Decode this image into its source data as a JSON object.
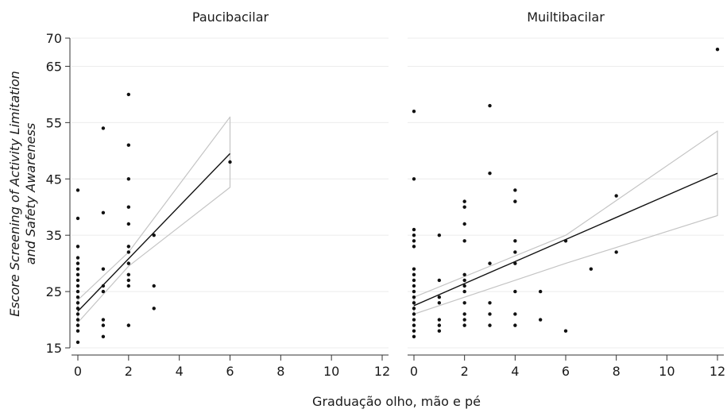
{
  "ylabel_lines": [
    "Escore Screening of Activity Limitation",
    "and Safety Awareness"
  ],
  "xlabel": "Graduação olho, mão e pé",
  "chart_data": [
    {
      "type": "scatter",
      "title": "Paucibacilar",
      "xlim": [
        0,
        12
      ],
      "ylim": [
        15,
        70
      ],
      "xticks": [
        0,
        2,
        4,
        6,
        8,
        10,
        12
      ],
      "yticks": [
        15,
        25,
        35,
        45,
        55,
        65,
        70
      ],
      "grid": true,
      "points": [
        [
          0,
          16
        ],
        [
          0,
          18
        ],
        [
          0,
          19
        ],
        [
          0,
          20
        ],
        [
          0,
          21
        ],
        [
          0,
          22
        ],
        [
          0,
          23
        ],
        [
          0,
          24
        ],
        [
          0,
          25
        ],
        [
          0,
          26
        ],
        [
          0,
          27
        ],
        [
          0,
          28
        ],
        [
          0,
          29
        ],
        [
          0,
          30
        ],
        [
          0,
          31
        ],
        [
          0,
          33
        ],
        [
          0,
          38
        ],
        [
          0,
          43
        ],
        [
          1,
          17
        ],
        [
          1,
          19
        ],
        [
          1,
          20
        ],
        [
          1,
          25
        ],
        [
          1,
          26
        ],
        [
          1,
          29
        ],
        [
          1,
          39
        ],
        [
          1,
          54
        ],
        [
          2,
          19
        ],
        [
          2,
          26
        ],
        [
          2,
          27
        ],
        [
          2,
          28
        ],
        [
          2,
          30
        ],
        [
          2,
          32
        ],
        [
          2,
          33
        ],
        [
          2,
          37
        ],
        [
          2,
          40
        ],
        [
          2,
          45
        ],
        [
          2,
          51
        ],
        [
          2,
          60
        ],
        [
          3,
          22
        ],
        [
          3,
          26
        ],
        [
          3,
          35
        ],
        [
          6,
          48
        ]
      ],
      "fit": {
        "x": [
          0,
          6
        ],
        "y": [
          21.5,
          49.5
        ]
      },
      "ci_upper": {
        "x": [
          0,
          2,
          6
        ],
        "y": [
          23.5,
          32,
          56
        ]
      },
      "ci_lower": {
        "x": [
          0,
          2,
          6
        ],
        "y": [
          19.5,
          29.5,
          43.5
        ]
      }
    },
    {
      "type": "scatter",
      "title": "Muiltibacilar",
      "xlim": [
        0,
        12
      ],
      "ylim": [
        15,
        70
      ],
      "xticks": [
        0,
        2,
        4,
        6,
        8,
        10,
        12
      ],
      "yticks": [
        15,
        25,
        35,
        45,
        55,
        65,
        70
      ],
      "grid": true,
      "points": [
        [
          0,
          17
        ],
        [
          0,
          18
        ],
        [
          0,
          19
        ],
        [
          0,
          20
        ],
        [
          0,
          21
        ],
        [
          0,
          22
        ],
        [
          0,
          23
        ],
        [
          0,
          24
        ],
        [
          0,
          25
        ],
        [
          0,
          26
        ],
        [
          0,
          27
        ],
        [
          0,
          28
        ],
        [
          0,
          29
        ],
        [
          0,
          33
        ],
        [
          0,
          34
        ],
        [
          0,
          35
        ],
        [
          0,
          36
        ],
        [
          0,
          45
        ],
        [
          0,
          57
        ],
        [
          1,
          18
        ],
        [
          1,
          19
        ],
        [
          1,
          20
        ],
        [
          1,
          23
        ],
        [
          1,
          24
        ],
        [
          1,
          27
        ],
        [
          1,
          35
        ],
        [
          2,
          19
        ],
        [
          2,
          20
        ],
        [
          2,
          21
        ],
        [
          2,
          23
        ],
        [
          2,
          25
        ],
        [
          2,
          26
        ],
        [
          2,
          27
        ],
        [
          2,
          28
        ],
        [
          2,
          34
        ],
        [
          2,
          37
        ],
        [
          2,
          40
        ],
        [
          2,
          41
        ],
        [
          3,
          19
        ],
        [
          3,
          21
        ],
        [
          3,
          23
        ],
        [
          3,
          30
        ],
        [
          3,
          46
        ],
        [
          3,
          58
        ],
        [
          4,
          19
        ],
        [
          4,
          21
        ],
        [
          4,
          25
        ],
        [
          4,
          30
        ],
        [
          4,
          32
        ],
        [
          4,
          34
        ],
        [
          4,
          41
        ],
        [
          4,
          43
        ],
        [
          5,
          20
        ],
        [
          5,
          25
        ],
        [
          6,
          18
        ],
        [
          6,
          34
        ],
        [
          7,
          29
        ],
        [
          8,
          32
        ],
        [
          8,
          42
        ],
        [
          12,
          68
        ]
      ],
      "fit": {
        "x": [
          0,
          12
        ],
        "y": [
          22.5,
          46
        ]
      },
      "ci_upper": {
        "x": [
          0,
          6,
          12
        ],
        "y": [
          24,
          35,
          53.5
        ]
      },
      "ci_lower": {
        "x": [
          0,
          6,
          12
        ],
        "y": [
          21,
          30,
          38.5
        ]
      }
    }
  ]
}
